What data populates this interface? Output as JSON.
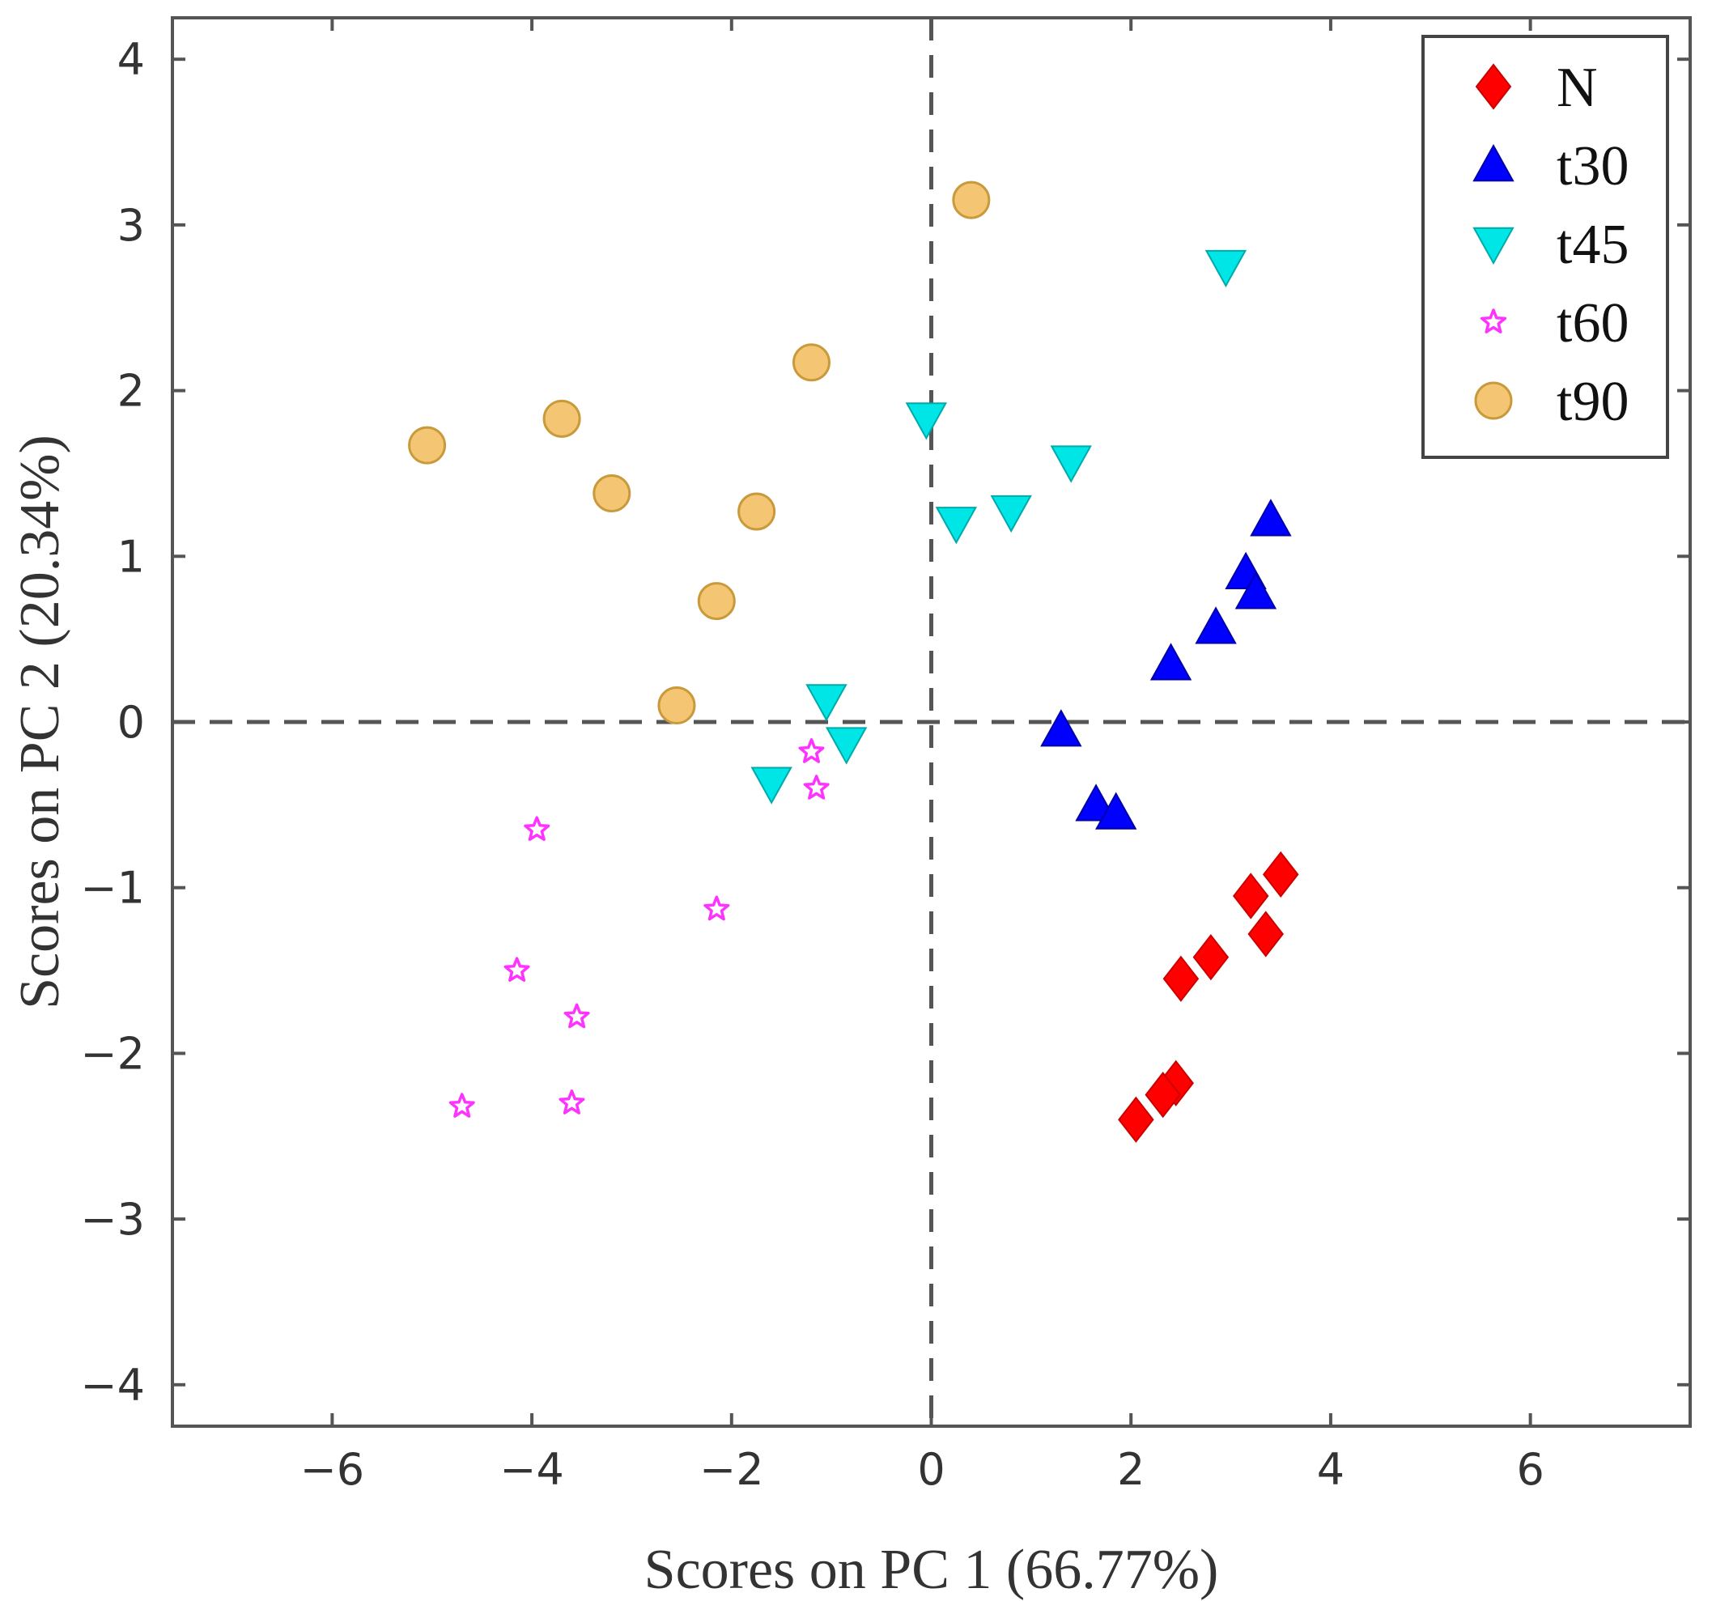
{
  "chart_data": {
    "type": "scatter",
    "xlabel": "Scores on PC 1 (66.77%)",
    "ylabel": "Scores on PC 2 (20.34%)",
    "xlim": [
      -7.6,
      7.6
    ],
    "ylim": [
      -4.25,
      4.25
    ],
    "xticks": [
      -6,
      -4,
      -2,
      0,
      2,
      4,
      6
    ],
    "yticks": [
      -4,
      -3,
      -2,
      -1,
      0,
      1,
      2,
      3,
      4
    ],
    "xtick_labels": [
      "−6",
      "−4",
      "−2",
      "0",
      "2",
      "4",
      "6"
    ],
    "ytick_labels": [
      "−4",
      "−3",
      "−2",
      "−1",
      "0",
      "1",
      "2",
      "3",
      "4"
    ],
    "reference_lines": {
      "x": 0,
      "y": 0,
      "style": "dashed"
    },
    "legend_position": "top-right",
    "series": [
      {
        "name": "N",
        "marker": "diamond",
        "color": "#ff0000",
        "points": [
          [
            3.5,
            -0.92
          ],
          [
            3.2,
            -1.05
          ],
          [
            3.35,
            -1.28
          ],
          [
            2.8,
            -1.42
          ],
          [
            2.5,
            -1.55
          ],
          [
            2.45,
            -2.18
          ],
          [
            2.32,
            -2.25
          ],
          [
            2.05,
            -2.4
          ]
        ]
      },
      {
        "name": "t30",
        "marker": "triangle-up",
        "color": "#0000ff",
        "points": [
          [
            3.4,
            1.22
          ],
          [
            3.15,
            0.9
          ],
          [
            3.25,
            0.78
          ],
          [
            2.85,
            0.57
          ],
          [
            2.4,
            0.35
          ],
          [
            1.3,
            -0.05
          ],
          [
            1.65,
            -0.5
          ],
          [
            1.85,
            -0.55
          ]
        ]
      },
      {
        "name": "t45",
        "marker": "triangle-down",
        "color": "#00e5e5",
        "points": [
          [
            2.95,
            2.75
          ],
          [
            -0.05,
            1.83
          ],
          [
            1.4,
            1.57
          ],
          [
            0.8,
            1.27
          ],
          [
            0.25,
            1.2
          ],
          [
            -1.05,
            0.13
          ],
          [
            -0.85,
            -0.13
          ],
          [
            -1.6,
            -0.37
          ]
        ]
      },
      {
        "name": "t60",
        "marker": "star",
        "color": "#ff33ff",
        "points": [
          [
            -1.2,
            -0.18
          ],
          [
            -1.15,
            -0.4
          ],
          [
            -3.95,
            -0.65
          ],
          [
            -2.15,
            -1.13
          ],
          [
            -4.15,
            -1.5
          ],
          [
            -3.55,
            -1.78
          ],
          [
            -4.7,
            -2.32
          ],
          [
            -3.6,
            -2.3
          ]
        ]
      },
      {
        "name": "t90",
        "marker": "circle",
        "color": "#f4c674",
        "points": [
          [
            0.4,
            3.15
          ],
          [
            -1.2,
            2.17
          ],
          [
            -3.7,
            1.83
          ],
          [
            -5.05,
            1.67
          ],
          [
            -3.2,
            1.38
          ],
          [
            -1.75,
            1.27
          ],
          [
            -2.15,
            0.73
          ],
          [
            -2.55,
            0.1
          ]
        ]
      }
    ]
  }
}
